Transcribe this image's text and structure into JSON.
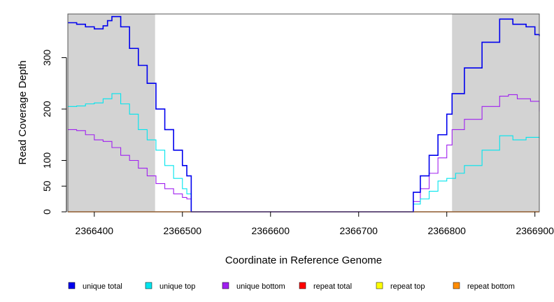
{
  "chart_data": {
    "type": "line",
    "xlabel": "Coordinate in Reference Genome",
    "ylabel": "Read Coverage Depth",
    "xlim": [
      2366370,
      2366905
    ],
    "ylim": [
      0,
      385
    ],
    "x_ticks": [
      2366400,
      2366500,
      2366600,
      2366700,
      2366800,
      2366900
    ],
    "x_tick_labels": [
      "2366400",
      "2366500",
      "2366600",
      "2366700",
      "2366800",
      "2366900"
    ],
    "y_ticks": [
      0,
      50,
      100,
      200,
      300
    ],
    "y_tick_labels": [
      "0",
      "50",
      "100",
      "200",
      "300"
    ],
    "shaded_regions": [
      [
        2366370,
        2366469
      ],
      [
        2366806,
        2366905
      ]
    ],
    "shade_color": "#d3d3d3",
    "grid": false,
    "legend_position": "bottom",
    "series": [
      {
        "name": "unique total",
        "color": "#0000ee",
        "x": [
          2366370,
          2366380,
          2366390,
          2366400,
          2366410,
          2366415,
          2366420,
          2366430,
          2366440,
          2366450,
          2366460,
          2366470,
          2366480,
          2366490,
          2366500,
          2366505,
          2366510,
          2366510,
          2366761,
          2366762,
          2366770,
          2366780,
          2366790,
          2366800,
          2366806,
          2366820,
          2366840,
          2366860,
          2366875,
          2366890,
          2366900,
          2366905
        ],
        "y": [
          368,
          365,
          360,
          356,
          362,
          372,
          380,
          360,
          318,
          285,
          250,
          200,
          160,
          120,
          90,
          70,
          50,
          0,
          0,
          38,
          70,
          110,
          150,
          190,
          230,
          280,
          330,
          375,
          365,
          360,
          345,
          342
        ]
      },
      {
        "name": "unique top",
        "color": "#00e5ee",
        "x": [
          2366370,
          2366380,
          2366390,
          2366400,
          2366410,
          2366420,
          2366430,
          2366440,
          2366450,
          2366460,
          2366470,
          2366480,
          2366490,
          2366500,
          2366505,
          2366510,
          2366510,
          2366761,
          2366762,
          2366770,
          2366780,
          2366790,
          2366800,
          2366810,
          2366820,
          2366840,
          2366860,
          2366875,
          2366890,
          2366905
        ],
        "y": [
          205,
          206,
          210,
          212,
          220,
          230,
          210,
          190,
          160,
          140,
          120,
          90,
          65,
          45,
          35,
          20,
          0,
          0,
          15,
          25,
          40,
          60,
          65,
          75,
          90,
          120,
          148,
          140,
          145,
          143
        ]
      },
      {
        "name": "unique bottom",
        "color": "#a020f0",
        "x": [
          2366370,
          2366380,
          2366390,
          2366400,
          2366410,
          2366420,
          2366430,
          2366440,
          2366450,
          2366460,
          2366470,
          2366480,
          2366490,
          2366500,
          2366505,
          2366510,
          2366510,
          2366761,
          2366762,
          2366770,
          2366780,
          2366790,
          2366800,
          2366806,
          2366820,
          2366840,
          2366860,
          2366870,
          2366880,
          2366895,
          2366905
        ],
        "y": [
          160,
          158,
          150,
          140,
          137,
          125,
          110,
          100,
          85,
          70,
          55,
          45,
          35,
          28,
          25,
          20,
          0,
          0,
          20,
          45,
          75,
          105,
          130,
          160,
          180,
          205,
          225,
          228,
          220,
          215,
          195
        ]
      },
      {
        "name": "repeat total",
        "color": "#ff0000",
        "x": [
          2366370,
          2366905
        ],
        "y": [
          0,
          0
        ]
      },
      {
        "name": "repeat top",
        "color": "#ffff00",
        "x": [
          2366370,
          2366905
        ],
        "y": [
          0,
          0
        ]
      },
      {
        "name": "repeat bottom",
        "color": "#ff8c00",
        "x": [
          2366370,
          2366905
        ],
        "y": [
          0,
          0
        ]
      }
    ]
  }
}
